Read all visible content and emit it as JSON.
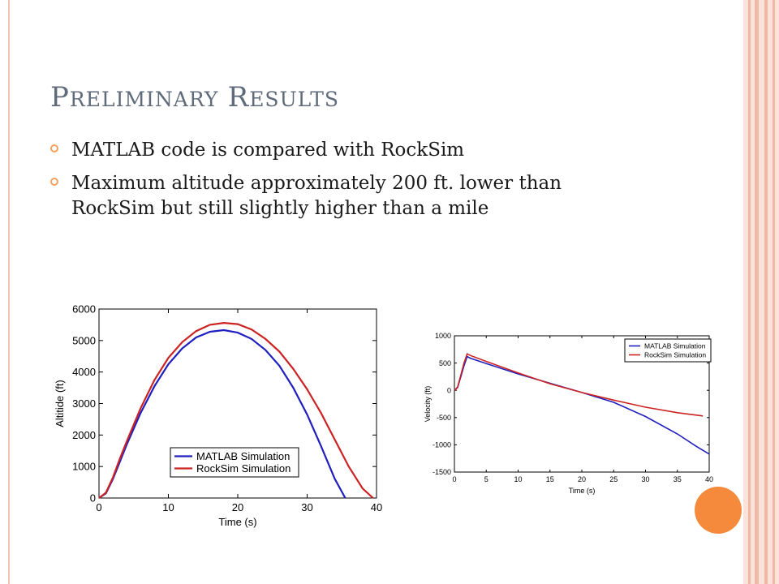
{
  "slide": {
    "title_first_1": "P",
    "title_rest_1": "RELIMINARY",
    "title_first_2": "R",
    "title_rest_2": "ESULTS",
    "bullets": [
      "MATLAB code is compared with RockSim",
      "Maximum altitude approximately 200 ft. lower than RockSim but still slightly higher than a mile"
    ]
  },
  "colors": {
    "accent": "#f58a3c",
    "title": "#5f6b7a",
    "matlab": "#1f1fbf",
    "rocksim": "#cc2222"
  },
  "chart_data": [
    {
      "type": "line",
      "title": "",
      "xlabel": "Time (s)",
      "ylabel": "Altitide (ft)",
      "xlim": [
        0,
        40
      ],
      "ylim": [
        0,
        6000
      ],
      "xticks": [
        0,
        10,
        20,
        30,
        40
      ],
      "yticks": [
        0,
        1000,
        2000,
        3000,
        4000,
        5000,
        6000
      ],
      "legend_position": "bottom-center",
      "grid": false,
      "series": [
        {
          "name": "MATLAB Simulation",
          "color": "#1f1fbf",
          "x": [
            0,
            1,
            2,
            3,
            4,
            6,
            8,
            10,
            12,
            14,
            16,
            18,
            20,
            22,
            24,
            26,
            28,
            30,
            32,
            34,
            35.5
          ],
          "y": [
            0,
            150,
            600,
            1150,
            1700,
            2700,
            3550,
            4250,
            4750,
            5100,
            5280,
            5330,
            5250,
            5050,
            4700,
            4200,
            3500,
            2650,
            1650,
            600,
            0
          ]
        },
        {
          "name": "RockSim Simulation",
          "color": "#cc2222",
          "x": [
            0,
            1,
            2,
            3,
            4,
            6,
            8,
            10,
            12,
            14,
            16,
            18,
            20,
            22,
            24,
            26,
            28,
            30,
            32,
            34,
            36,
            38,
            39.5
          ],
          "y": [
            0,
            170,
            650,
            1250,
            1800,
            2850,
            3750,
            4450,
            4950,
            5300,
            5500,
            5560,
            5520,
            5350,
            5050,
            4650,
            4100,
            3450,
            2700,
            1850,
            1000,
            300,
            0
          ]
        }
      ]
    },
    {
      "type": "line",
      "title": "",
      "xlabel": "Time (s)",
      "ylabel": "Velocity (ft)",
      "xlim": [
        0,
        40
      ],
      "ylim": [
        -1500,
        1000
      ],
      "xticks": [
        0,
        5,
        10,
        15,
        20,
        25,
        30,
        35,
        40
      ],
      "yticks": [
        -1500,
        -1000,
        -500,
        0,
        500,
        1000
      ],
      "legend_position": "top-right",
      "grid": false,
      "series": [
        {
          "name": "MATLAB Simulation",
          "color": "#1f1fbf",
          "x": [
            0,
            0.5,
            1,
            1.5,
            2,
            2.5,
            5,
            10,
            15,
            20,
            25,
            30,
            35,
            38,
            40
          ],
          "y": [
            0,
            50,
            250,
            450,
            620,
            590,
            490,
            300,
            130,
            -40,
            -220,
            -480,
            -800,
            -1030,
            -1170
          ]
        },
        {
          "name": "RockSim Simulation",
          "color": "#cc2222",
          "x": [
            0,
            0.5,
            1,
            1.5,
            2,
            2.5,
            5,
            10,
            15,
            20,
            25,
            30,
            35,
            39
          ],
          "y": [
            0,
            60,
            280,
            500,
            670,
            640,
            530,
            320,
            120,
            -40,
            -180,
            -310,
            -410,
            -470
          ]
        }
      ]
    }
  ]
}
